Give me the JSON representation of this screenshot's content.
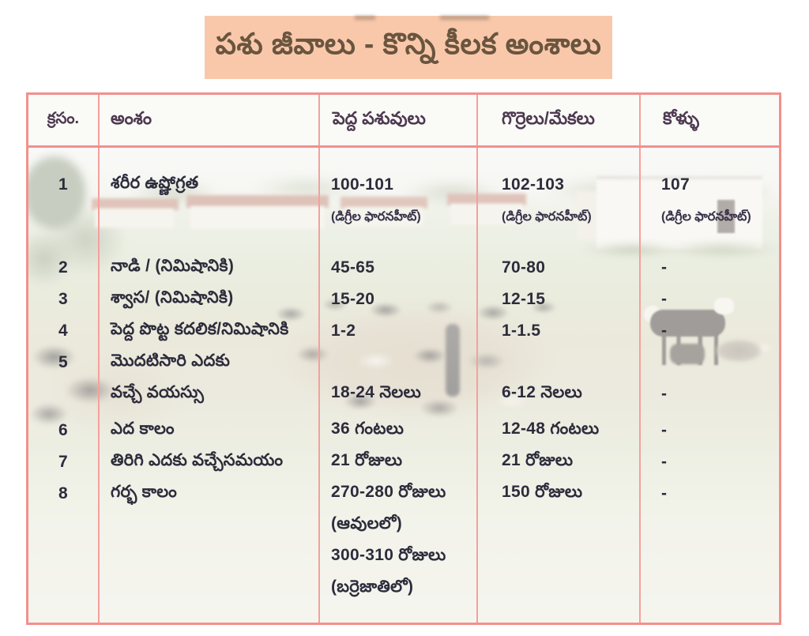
{
  "title_banner": {
    "text": "పశు జీవాలు - కొన్ని కీలక అంశాలు"
  },
  "colors": {
    "banner_bg": "#f9c8aa",
    "banner_text": "#6a553f",
    "table_border": "#f2908d",
    "grid_line": "#f5a09c",
    "header_bg": "#fafaf7",
    "header_text": "#4d3950",
    "body_text": "#2d2c3c"
  },
  "table": {
    "columns": [
      {
        "label": "క్రసం."
      },
      {
        "label": "అంశం"
      },
      {
        "label": "పెద్ద పశువులు"
      },
      {
        "label": "గొర్రెలు/మేకలు"
      },
      {
        "label": "కోళ్ళు"
      }
    ],
    "rows": [
      {
        "no": "1",
        "aspect": [
          {
            "t": "శరీర ఉష్ణోగ్రత"
          }
        ],
        "cattle": [
          {
            "t": "100-101"
          },
          {
            "t": "(డిగ్రీల ఫారనహీట్)",
            "small": true
          }
        ],
        "sheep_goats": [
          {
            "t": "102-103"
          },
          {
            "t": "(డిగ్రీల ఫారనహీట్)",
            "small": true
          }
        ],
        "poultry": [
          {
            "t": "107"
          },
          {
            "t": "(డిగ్రీల ఫారనహీట్)",
            "small": true
          }
        ]
      },
      {
        "no": "2",
        "aspect": [
          {
            "t": "నాడి / (నిమిషానికి)"
          }
        ],
        "cattle": [
          {
            "t": "45-65"
          }
        ],
        "sheep_goats": [
          {
            "t": "70-80"
          }
        ],
        "poultry": [
          {
            "t": "-"
          }
        ]
      },
      {
        "no": "3",
        "aspect": [
          {
            "t": "శ్వాస/ (నిమిషానికి)"
          }
        ],
        "cattle": [
          {
            "t": "15-20"
          }
        ],
        "sheep_goats": [
          {
            "t": "12-15"
          }
        ],
        "poultry": [
          {
            "t": "-"
          }
        ]
      },
      {
        "no": "4",
        "aspect": [
          {
            "t": "పెద్ద పొట్ట కదలిక/నిమిషానికి"
          }
        ],
        "cattle": [
          {
            "t": "1-2"
          }
        ],
        "sheep_goats": [
          {
            "t": "1-1.5"
          }
        ],
        "poultry": [
          {
            "t": "-"
          }
        ]
      },
      {
        "no": "5",
        "aspect": [
          {
            "t": "మొదటిసారి ఎదకు"
          },
          {
            "t": "వచ్చే వయస్సు"
          }
        ],
        "cattle": [
          {
            "t": ""
          },
          {
            "t": "18-24 నెలలు"
          }
        ],
        "sheep_goats": [
          {
            "t": ""
          },
          {
            "t": "6-12 నెలలు"
          }
        ],
        "poultry": [
          {
            "t": ""
          },
          {
            "t": "-"
          }
        ]
      },
      {
        "no": "6",
        "aspect": [
          {
            "t": "ఎద కాలం"
          }
        ],
        "cattle": [
          {
            "t": "36 గంటలు"
          }
        ],
        "sheep_goats": [
          {
            "t": "12-48 గంటలు"
          }
        ],
        "poultry": [
          {
            "t": "-"
          }
        ]
      },
      {
        "no": "7",
        "aspect": [
          {
            "t": "తిరిగి ఎదకు వచ్చేసమయం"
          }
        ],
        "cattle": [
          {
            "t": "21 రోజులు"
          }
        ],
        "sheep_goats": [
          {
            "t": "21 రోజులు"
          }
        ],
        "poultry": [
          {
            "t": "-"
          }
        ]
      },
      {
        "no": "8",
        "aspect": [
          {
            "t": "గర్భ కాలం"
          }
        ],
        "cattle": [
          {
            "t": "270-280 రోజులు"
          },
          {
            "t": "(ఆవులలో)"
          },
          {
            "t": "300-310 రోజులు"
          },
          {
            "t": "(బర్రెజాతిలో)"
          }
        ],
        "sheep_goats": [
          {
            "t": "150 రోజులు"
          }
        ],
        "poultry": [
          {
            "t": "-"
          }
        ]
      }
    ]
  }
}
